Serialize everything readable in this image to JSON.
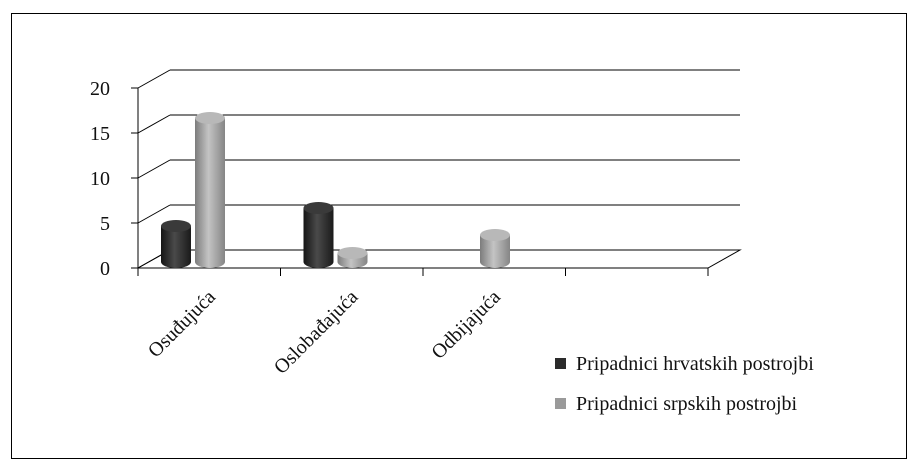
{
  "chart_data": {
    "type": "bar",
    "title": "",
    "xlabel": "",
    "ylabel": "",
    "categories": [
      "Osuđujuća",
      "Oslobađajuća",
      "Odbijajuća"
    ],
    "ylim": [
      0,
      20
    ],
    "yticks": [
      "0",
      "5",
      "10",
      "15",
      "20"
    ],
    "grid": true,
    "legend_position": "bottom-right",
    "series": [
      {
        "name": "Pripadnici hrvatskih postrojbi",
        "values": [
          4,
          6,
          0
        ],
        "color": "#2b2b2b"
      },
      {
        "name": "Pripadnici srpskih postrojbi",
        "values": [
          16,
          1,
          3
        ],
        "color": "#9a9a9a"
      }
    ]
  }
}
